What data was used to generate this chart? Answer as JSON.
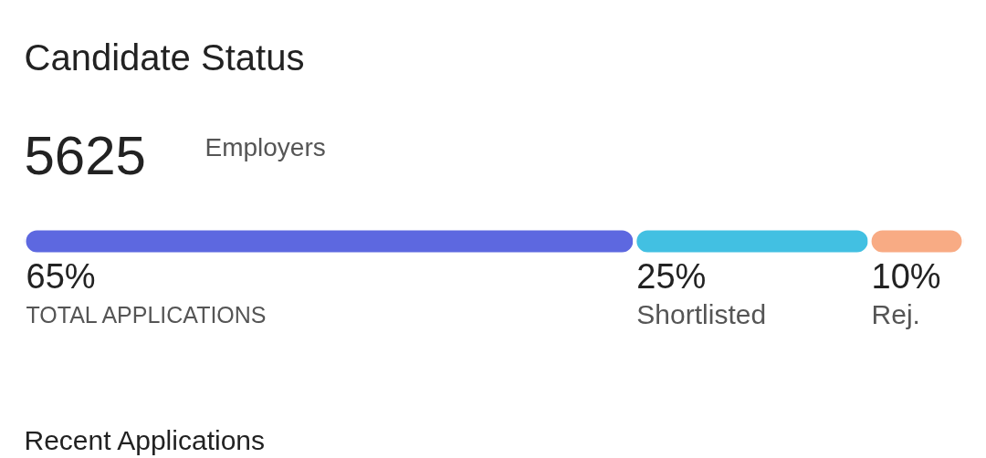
{
  "chart_data": {
    "type": "bar",
    "stacked": true,
    "orientation": "horizontal",
    "title": "Candidate Status",
    "subtitle": "5625",
    "annotations": [
      "Employers",
      "Recent Applications"
    ],
    "categories": [
      null
    ],
    "series": [
      {
        "name": "TOTAL APPLICATIONS",
        "color": "#5d68e0",
        "values": [
          65
        ],
        "value_labels": [
          "65%"
        ]
      },
      {
        "name": "Shortlisted",
        "color": "#42c0e2",
        "values": [
          25
        ],
        "value_labels": [
          "25%"
        ]
      },
      {
        "name": "Rej.",
        "color": "#f8ab84",
        "values": [
          10
        ],
        "value_labels": [
          "10%"
        ]
      }
    ],
    "xlim": [
      0,
      100
    ],
    "tick_labels": false,
    "grid": false
  }
}
